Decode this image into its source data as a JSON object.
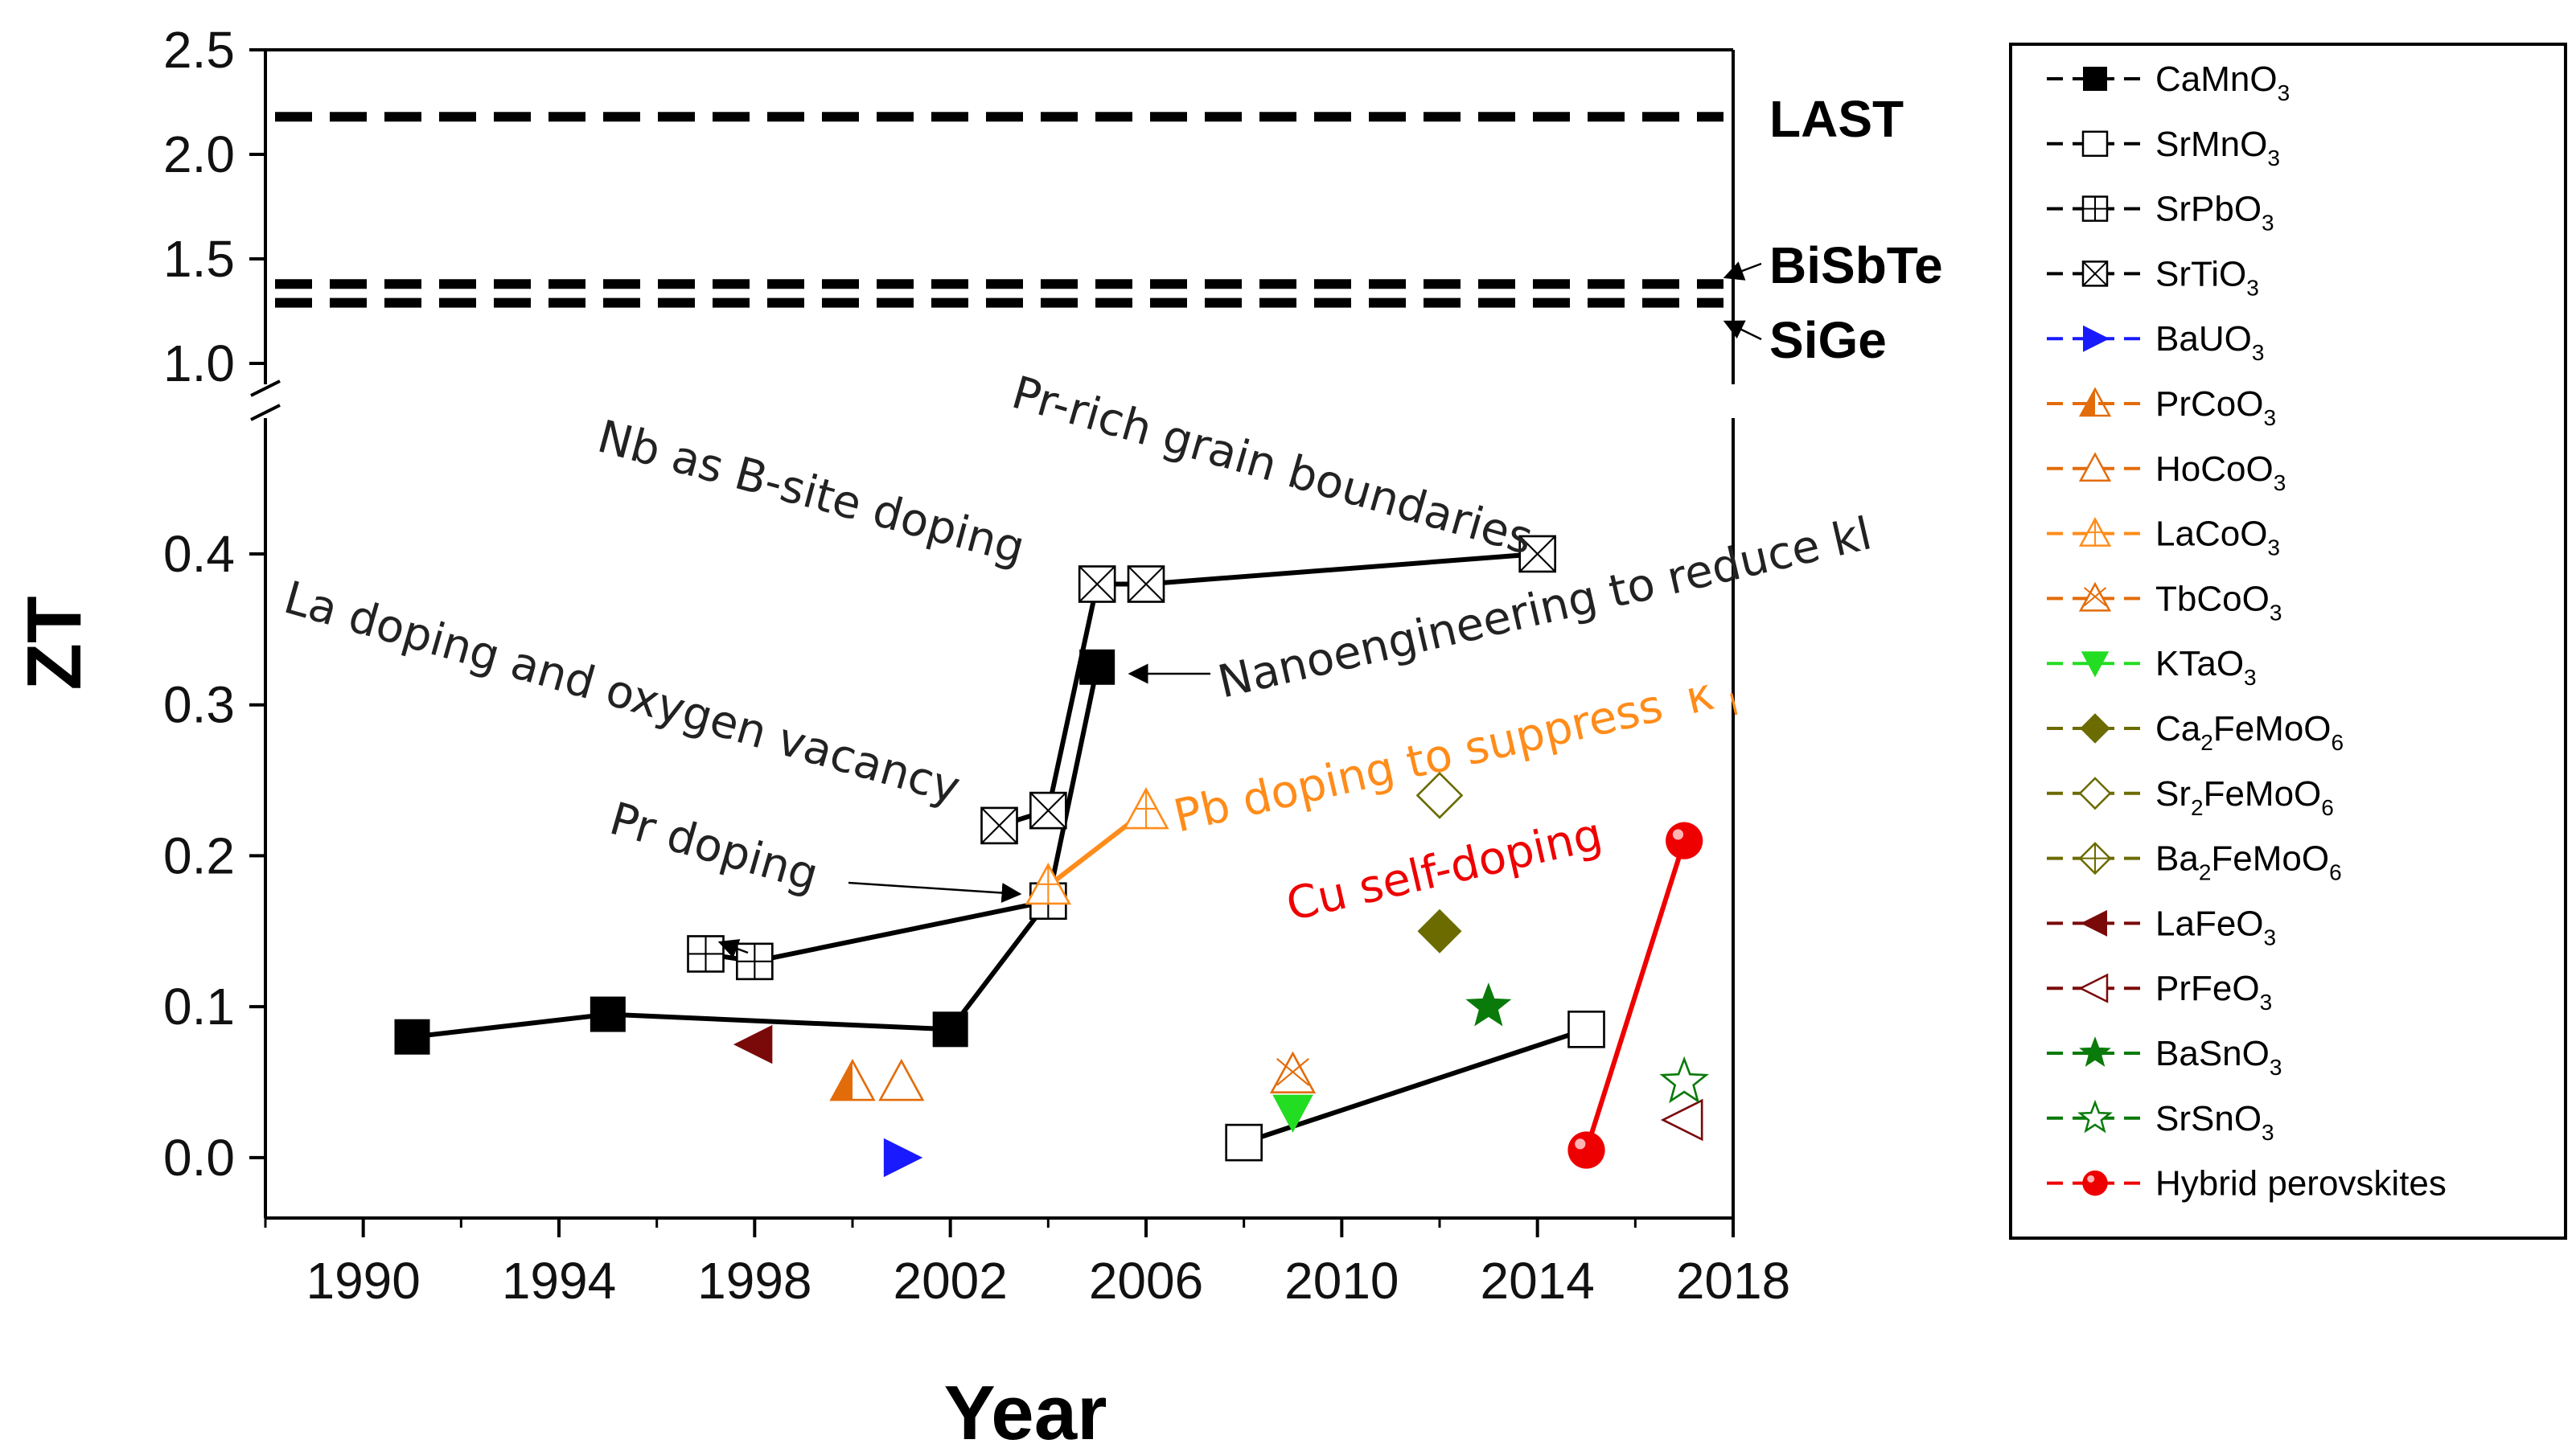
{
  "chart_data": {
    "type": "scatter",
    "xlabel": "Year",
    "ylabel": "ZT",
    "xlim": [
      1988,
      2018
    ],
    "xticks": [
      "1990",
      "1994",
      "1998",
      "2002",
      "2006",
      "2010",
      "2014",
      "2018"
    ],
    "ylim_lower": [
      -0.04,
      0.49
    ],
    "ylim_upper": [
      0.9,
      2.5
    ],
    "yticks_lower": [
      "0.0",
      "0.1",
      "0.2",
      "0.3",
      "0.4"
    ],
    "yticks_upper": [
      "1.0",
      "1.5",
      "2.0",
      "2.5"
    ],
    "reference_lines": [
      {
        "name": "LAST",
        "value": 2.18
      },
      {
        "name": "BiSbTe",
        "value": 1.38
      },
      {
        "name": "SiGe",
        "value": 1.29
      }
    ],
    "series": [
      {
        "name": "CaMnO",
        "sub": "3",
        "color": "#000000",
        "marker": "square-filled",
        "connected": true,
        "points": [
          [
            1991,
            0.08
          ],
          [
            1995,
            0.095
          ],
          [
            2002,
            0.085
          ],
          [
            2004,
            0.17
          ],
          [
            2005,
            0.325
          ]
        ]
      },
      {
        "name": "SrMnO",
        "sub": "3",
        "color": "#000000",
        "marker": "square-open",
        "connected": true,
        "points": [
          [
            2008,
            0.01
          ],
          [
            2015,
            0.085
          ]
        ]
      },
      {
        "name": "SrPbO",
        "sub": "3",
        "color": "#000000",
        "marker": "square-grid",
        "connected": true,
        "points": [
          [
            1997,
            0.135
          ],
          [
            1998,
            0.13
          ],
          [
            2004,
            0.17
          ]
        ]
      },
      {
        "name": "SrTiO",
        "sub": "3",
        "color": "#000000",
        "marker": "square-x",
        "connected": true,
        "points": [
          [
            2003,
            0.22
          ],
          [
            2004,
            0.23
          ],
          [
            2005,
            0.38
          ],
          [
            2006,
            0.38
          ],
          [
            2014,
            0.4
          ]
        ]
      },
      {
        "name": "BaUO",
        "sub": "3",
        "color": "#1a1aff",
        "marker": "triangle-right-filled",
        "connected": false,
        "points": [
          [
            2001,
            0.0
          ]
        ]
      },
      {
        "name": "PrCoO",
        "sub": "3",
        "color": "#e36c0a",
        "marker": "triangle-split",
        "connected": false,
        "points": [
          [
            2000,
            0.05
          ]
        ]
      },
      {
        "name": "HoCoO",
        "sub": "3",
        "color": "#e36c0a",
        "marker": "triangle-open",
        "connected": false,
        "points": [
          [
            2001,
            0.05
          ]
        ]
      },
      {
        "name": "LaCoO",
        "sub": "3",
        "color": "#ff8c1a",
        "marker": "triangle-plus",
        "connected": true,
        "points": [
          [
            2004,
            0.18
          ],
          [
            2006,
            0.23
          ]
        ]
      },
      {
        "name": "TbCoO",
        "sub": "3",
        "color": "#e36c0a",
        "marker": "triangle-x",
        "connected": false,
        "points": [
          [
            2009,
            0.055
          ]
        ]
      },
      {
        "name": "KTaO",
        "sub": "3",
        "color": "#22dd22",
        "marker": "triangle-down-filled",
        "connected": false,
        "points": [
          [
            2009,
            0.03
          ]
        ]
      },
      {
        "name": "Ca",
        "sub": "2",
        "name2": "FeMoO",
        "sub2": "6",
        "color": "#6b6b00",
        "marker": "diamond-filled",
        "connected": false,
        "points": [
          [
            2012,
            0.15
          ]
        ]
      },
      {
        "name": "Sr",
        "sub": "2",
        "name2": "FeMoO",
        "sub2": "6",
        "color": "#6b6b00",
        "marker": "diamond-open",
        "connected": false,
        "points": [
          [
            2012,
            0.24
          ]
        ]
      },
      {
        "name": "Ba",
        "sub": "2",
        "name2": "FeMoO",
        "sub2": "6",
        "color": "#6b6b00",
        "marker": "diamond-plus",
        "connected": false,
        "points": []
      },
      {
        "name": "LaFeO",
        "sub": "3",
        "color": "#7a0a0a",
        "marker": "triangle-left-filled",
        "connected": false,
        "points": [
          [
            1998,
            0.075
          ]
        ]
      },
      {
        "name": "PrFeO",
        "sub": "3",
        "color": "#7a0a0a",
        "marker": "triangle-left-open",
        "connected": false,
        "points": [
          [
            2017,
            0.025
          ]
        ]
      },
      {
        "name": "BaSnO",
        "sub": "3",
        "color": "#0a7a0a",
        "marker": "star-filled",
        "connected": false,
        "points": [
          [
            2013,
            0.1
          ]
        ]
      },
      {
        "name": "SrSnO",
        "sub": "3",
        "color": "#0a7a0a",
        "marker": "star-open",
        "connected": false,
        "points": [
          [
            2017,
            0.05
          ]
        ]
      },
      {
        "name": "Hybrid perovskites",
        "sub": "",
        "color": "#ee0000",
        "marker": "circle-filled",
        "connected": true,
        "points": [
          [
            2015,
            0.005
          ],
          [
            2017,
            0.21
          ]
        ]
      }
    ],
    "annotations": [
      {
        "text": "Pr-rich grain boundaries",
        "color": "#222222"
      },
      {
        "text": "Nb as B-site doping",
        "color": "#222222"
      },
      {
        "text": "Nanoengineering to reduce kl",
        "color": "#222222"
      },
      {
        "text": "La doping and oxygen vacancy",
        "color": "#222222"
      },
      {
        "text": "Pb doping to suppress",
        "symbol": "κ",
        "symbol_sub": "l",
        "color": "#ff8c1a"
      },
      {
        "text": "Pr doping",
        "color": "#222222"
      },
      {
        "text": "Cu self-doping",
        "color": "#ee0000"
      }
    ]
  }
}
